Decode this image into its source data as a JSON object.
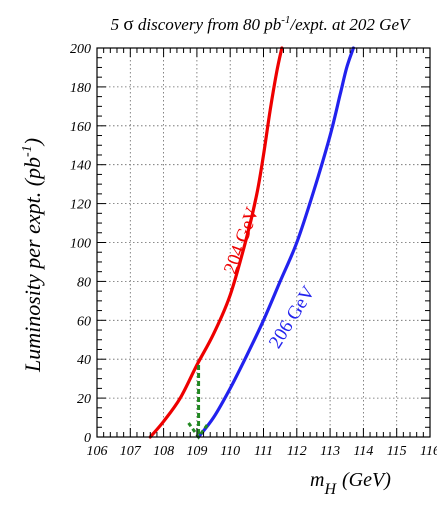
{
  "chart_data": {
    "type": "line",
    "title": {
      "prefix": "5",
      "sigma": "σ",
      "main": " discovery from 80 pb",
      "sup": "-1",
      "suffix": "/expt. at 202 GeV"
    },
    "xlabel": {
      "main": "m",
      "sub": "H",
      "unit": "(GeV)"
    },
    "ylabel": {
      "main": "Luminosity per expt. (pb",
      "sup": "-1",
      "close": ")"
    },
    "xlim": [
      106,
      116
    ],
    "ylim": [
      0,
      200
    ],
    "xticks": [
      "106",
      "107",
      "108",
      "109",
      "110",
      "111",
      "112",
      "113",
      "114",
      "115",
      "116"
    ],
    "yticks": [
      "0",
      "20",
      "40",
      "60",
      "80",
      "100",
      "120",
      "140",
      "160",
      "180",
      "200"
    ],
    "grid": true,
    "series": [
      {
        "name": "204 GeV",
        "color": "#ee0000",
        "x": [
          107.6,
          108.0,
          108.5,
          109.0,
          109.5,
          110.0,
          110.5,
          110.8,
          111.0,
          111.2,
          111.4,
          111.55
        ],
        "y": [
          0,
          8,
          20,
          37,
          53,
          73,
          103,
          125,
          145,
          168,
          188,
          200
        ]
      },
      {
        "name": "206 GeV",
        "color": "#2222ee",
        "x": [
          109.05,
          109.5,
          110.0,
          110.5,
          111.0,
          111.5,
          112.0,
          112.5,
          113.0,
          113.3,
          113.5,
          113.7
        ],
        "y": [
          0,
          10,
          25,
          42,
          60,
          80,
          100,
          126,
          155,
          176,
          190,
          200
        ]
      }
    ],
    "annotation_arrow": {
      "color": "#228822",
      "x": 109.05,
      "y_start": 37,
      "y_end": 0
    }
  }
}
